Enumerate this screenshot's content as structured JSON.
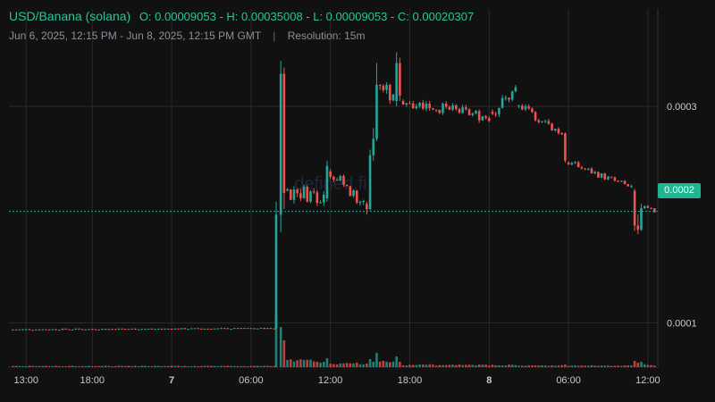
{
  "header": {
    "pair": "USD/Banana (solana)",
    "ohlc_text": "O: 0.00009053 - H: 0.00035008 - L: 0.00009053 - C: 0.00020307",
    "range": "Jun 6, 2025, 12:15 PM - Jun 8, 2025, 12:15 PM GMT",
    "separator": "|",
    "resolution": "Resolution: 15m"
  },
  "watermark": "defined.fi",
  "last_price_label": "0.0002",
  "colors": {
    "up": "#26a69a",
    "down": "#ef5350",
    "background": "#111111",
    "grid": "#2a2a2a",
    "label": "#c9c9c9"
  },
  "chart_data": {
    "type": "candlestick",
    "y_ticks": [
      "0.0003",
      "0.0001"
    ],
    "y_tick_values": [
      0.0003,
      0.0001
    ],
    "ylim": [
      6e-05,
      0.00039
    ],
    "x_ticks": [
      {
        "label": "13:00",
        "hour": 1,
        "bold": false
      },
      {
        "label": "18:00",
        "hour": 6,
        "bold": false
      },
      {
        "label": "7",
        "hour": 12,
        "bold": true
      },
      {
        "label": "06:00",
        "hour": 18,
        "bold": false
      },
      {
        "label": "12:00",
        "hour": 24,
        "bold": false
      },
      {
        "label": "18:00",
        "hour": 30,
        "bold": false
      },
      {
        "label": "8",
        "hour": 36,
        "bold": true
      },
      {
        "label": "06:00",
        "hour": 42,
        "bold": false
      },
      {
        "label": "12:00",
        "hour": 48,
        "bold": false
      }
    ],
    "open": 9.053e-05,
    "high": 0.00035008,
    "low": 9.053e-05,
    "close": 0.00020307,
    "segments": [
      {
        "from_hour": 0,
        "to_hour": 19.8,
        "start": 9.4e-05,
        "end": 9.5e-05,
        "noise": 6e-07,
        "vol": 1.5
      },
      {
        "hour": 19.9,
        "o": 9.5e-05,
        "h": 0.000212,
        "l": 9.4e-05,
        "c": 0.0002,
        "v": 60
      },
      {
        "hour": 20.25,
        "o": 0.0002,
        "h": 0.000342,
        "l": 0.000184,
        "c": 0.00033,
        "v": 45
      },
      {
        "hour": 20.5,
        "o": 0.00033,
        "h": 0.000336,
        "l": 0.000205,
        "c": 0.00022,
        "v": 30
      },
      {
        "from_hour": 20.75,
        "to_hour": 23.5,
        "start": 0.000222,
        "end": 0.000218,
        "noise": 8e-06,
        "vol": 8
      },
      {
        "hour": 23.75,
        "o": 0.000215,
        "h": 0.00025,
        "l": 0.000212,
        "c": 0.000245,
        "v": 10
      },
      {
        "from_hour": 24.0,
        "to_hour": 26.5,
        "start": 0.00024,
        "end": 0.00021,
        "noise": 6e-06,
        "vol": 5
      },
      {
        "hour": 26.75,
        "o": 0.00021,
        "h": 0.000212,
        "l": 0.0002,
        "c": 0.000205,
        "v": 4
      },
      {
        "hour": 27.0,
        "o": 0.000205,
        "h": 0.00026,
        "l": 0.000204,
        "c": 0.000255,
        "v": 9
      },
      {
        "hour": 27.25,
        "o": 0.000255,
        "h": 0.00028,
        "l": 0.00025,
        "c": 0.00027,
        "v": 6
      },
      {
        "hour": 27.5,
        "o": 0.00027,
        "h": 0.00034,
        "l": 0.000268,
        "c": 0.00032,
        "v": 16
      },
      {
        "from_hour": 27.75,
        "to_hour": 28.75,
        "start": 0.00032,
        "end": 0.000305,
        "noise": 8e-06,
        "vol": 7
      },
      {
        "hour": 29.0,
        "o": 0.000305,
        "h": 0.00035,
        "l": 0.0003,
        "c": 0.00034,
        "v": 12
      },
      {
        "hour": 29.25,
        "o": 0.00034,
        "h": 0.000345,
        "l": 0.000305,
        "c": 0.00031,
        "v": 6
      },
      {
        "from_hour": 29.5,
        "to_hour": 36.0,
        "start": 0.000305,
        "end": 0.00029,
        "noise": 5e-06,
        "vol": 3
      },
      {
        "from_hour": 36.25,
        "to_hour": 38.0,
        "start": 0.000295,
        "end": 0.000315,
        "noise": 6e-06,
        "vol": 3
      },
      {
        "from_hour": 38.25,
        "to_hour": 41.5,
        "start": 0.0003,
        "end": 0.000275,
        "noise": 4e-06,
        "vol": 2
      },
      {
        "hour": 41.75,
        "o": 0.000275,
        "h": 0.000276,
        "l": 0.000248,
        "c": 0.00025,
        "v": 3
      },
      {
        "from_hour": 42.0,
        "to_hour": 46.75,
        "start": 0.000248,
        "end": 0.000225,
        "noise": 3e-06,
        "vol": 2
      },
      {
        "hour": 47.0,
        "o": 0.000222,
        "h": 0.000224,
        "l": 0.000185,
        "c": 0.00019,
        "v": 7
      },
      {
        "hour": 47.25,
        "o": 0.00019,
        "h": 0.0002,
        "l": 0.000182,
        "c": 0.000186,
        "v": 5
      },
      {
        "hour": 47.5,
        "o": 0.000186,
        "h": 0.00021,
        "l": 0.000185,
        "c": 0.000206,
        "v": 6
      },
      {
        "from_hour": 47.75,
        "to_hour": 48.5,
        "start": 0.000206,
        "end": 0.000203,
        "noise": 2e-06,
        "vol": 3
      }
    ]
  }
}
